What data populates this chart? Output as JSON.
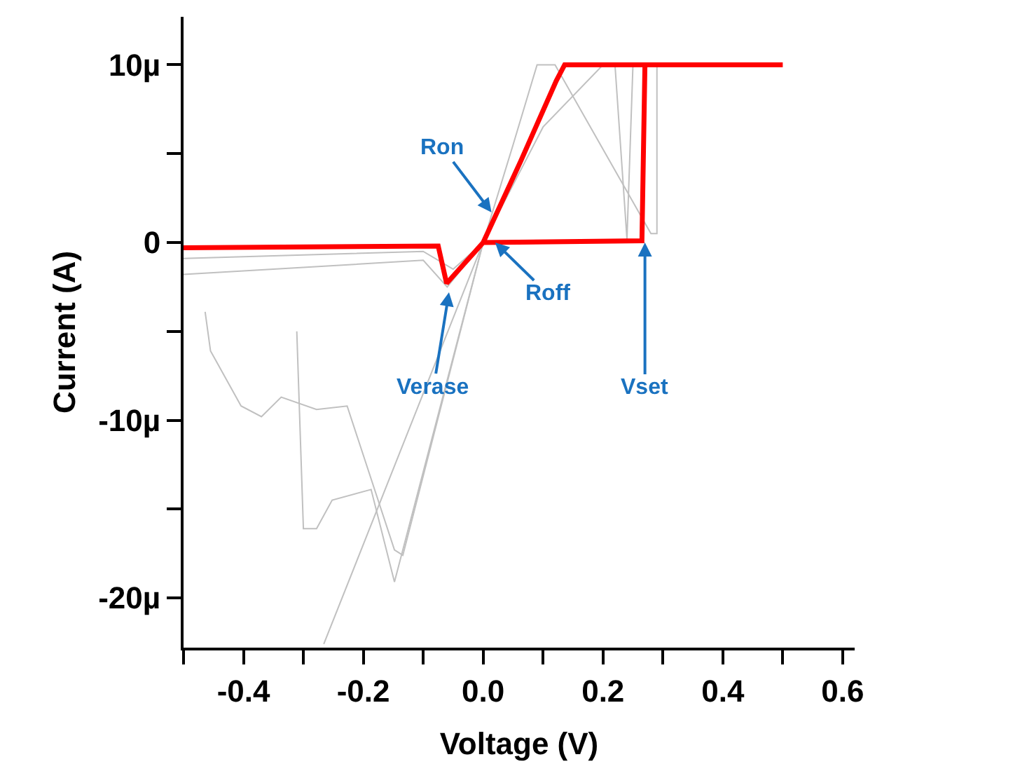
{
  "chart_data": {
    "type": "line",
    "xlabel": "Voltage (V)",
    "ylabel": "Current (A)",
    "xlim": [
      -0.5,
      0.62
    ],
    "ylim": [
      -22.8,
      12.7
    ],
    "xticks": [
      {
        "value": -0.5,
        "label": null
      },
      -0.4,
      {
        "value": -0.3,
        "label": null
      },
      -0.2,
      {
        "value": -0.1,
        "label": null
      },
      {
        "value": 0,
        "label": "0.0"
      },
      {
        "value": 0.1,
        "label": null
      },
      0.2,
      {
        "value": 0.3,
        "label": null
      },
      0.4,
      {
        "value": 0.5,
        "label": null
      },
      0.6
    ],
    "yticks": [
      {
        "value": -20,
        "label": "-20µ"
      },
      {
        "value": -15,
        "label": null
      },
      {
        "value": -10,
        "label": "-10µ"
      },
      {
        "value": -5,
        "label": null
      },
      0,
      {
        "value": 5,
        "label": null
      },
      {
        "value": 10,
        "label": "10µ"
      }
    ],
    "marker": "none",
    "line_style": "solid",
    "series": [
      {
        "color": "#c0c0c0",
        "x": [
          -0.5,
          -0.3,
          -0.1,
          -0.06,
          0.0,
          0.05,
          0.09,
          0.12,
          0.28,
          0.29,
          0.29
        ],
        "values": [
          -1.8,
          -1.4,
          -1.0,
          -2.5,
          0,
          5.5,
          10,
          10,
          0.5,
          0.5,
          10
        ]
      },
      {
        "color": "#c0c0c0",
        "x": [
          -0.5,
          -0.3,
          -0.1,
          -0.05,
          0.0,
          0.1,
          0.2,
          0.22,
          0.24,
          0.25
        ],
        "values": [
          -0.9,
          -0.7,
          -0.5,
          -1.5,
          0,
          6.5,
          10,
          10,
          0.2,
          10
        ]
      },
      {
        "color": "#c0c0c0",
        "x": [
          -0.464,
          -0.455,
          -0.404,
          -0.37,
          -0.337,
          -0.278,
          -0.227,
          -0.148,
          -0.134,
          0.0
        ],
        "values": [
          -3.9,
          -6.1,
          -9.2,
          -9.8,
          -8.7,
          -9.4,
          -9.2,
          -17.3,
          -17.6,
          0
        ]
      },
      {
        "color": "#c0c0c0",
        "x": [
          -0.311,
          -0.3,
          -0.278,
          -0.252,
          -0.187,
          -0.148,
          0.0
        ],
        "values": [
          -5,
          -16.1,
          -16.1,
          -14.5,
          -13.9,
          -19.1,
          0
        ]
      },
      {
        "color": "#c0c0c0",
        "x": [
          -0.266,
          0.0
        ],
        "values": [
          -22.6,
          0
        ]
      },
      {
        "color": "#ff0000",
        "x": [
          0.0,
          0.265,
          0.27,
          0.5,
          0.136,
          0.122,
          0.063,
          0.0,
          -0.061,
          -0.075,
          -0.5
        ],
        "values": [
          0,
          0.1,
          10,
          10,
          10,
          9.1,
          4.6,
          0,
          -2.3,
          -0.2,
          -0.3
        ]
      }
    ],
    "annotations": [
      {
        "text": "Ron",
        "x": 0.014,
        "y": 1.7
      },
      {
        "text": "Roff",
        "x": 0.02,
        "y": 0
      },
      {
        "text": "Verase",
        "x": -0.057,
        "y": -2.8
      },
      {
        "text": "Vset",
        "x": 0.27,
        "y": 0
      }
    ]
  }
}
